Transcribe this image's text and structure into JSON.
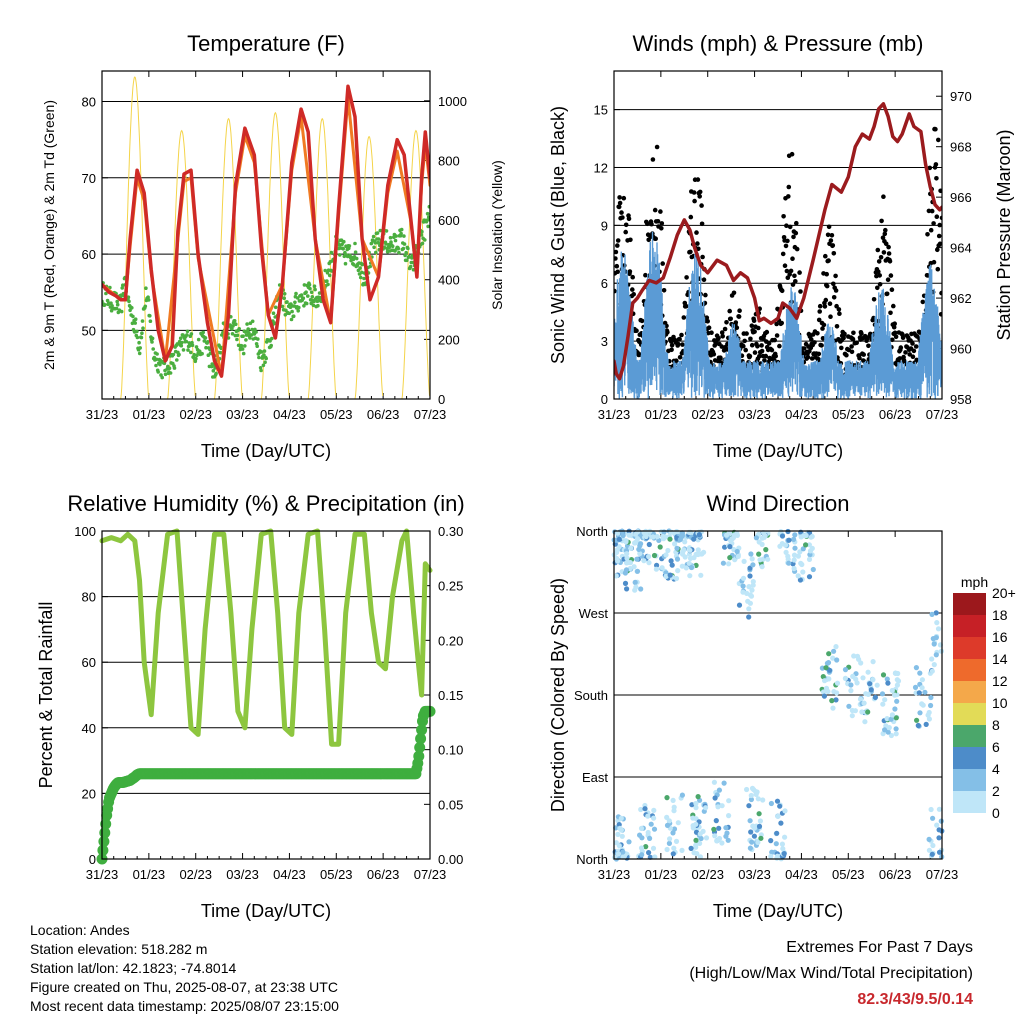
{
  "colors": {
    "temp_2m": "#cf2a27",
    "temp_9m": "#f07a22",
    "dewpoint": "#4aae3f",
    "solar": "#f4d44a",
    "wind": "#5b9bd5",
    "gust": "#000000",
    "pressure": "#9b1b1e",
    "rh": "#8dc63f",
    "rain": "#3fae3f"
  },
  "time_ticks": [
    "31/23",
    "01/23",
    "02/23",
    "03/23",
    "04/23",
    "05/23",
    "06/23",
    "07/23"
  ],
  "chart_data": [
    {
      "id": "temperature",
      "type": "line",
      "title": "Temperature (F)",
      "xlabel": "Time (Day/UTC)",
      "ylabel": "2m & 9m T (Red, Orange) & 2m Td (Green)",
      "ylabel_right": "Solar Insolation (Yellow)",
      "xlim_days": [
        0,
        7
      ],
      "ylim": [
        41,
        84
      ],
      "yticks": [
        50,
        60,
        70,
        80
      ],
      "ylim_right": [
        0,
        1100
      ],
      "yticks_right": [
        0,
        200,
        400,
        600,
        800,
        1000
      ],
      "grid": true,
      "series": [
        {
          "name": "2m T",
          "color": "#cf2a27",
          "x": [
            0,
            0.15,
            0.3,
            0.4,
            0.5,
            0.6,
            0.75,
            0.9,
            1.05,
            1.2,
            1.35,
            1.5,
            1.62,
            1.75,
            1.9,
            2.05,
            2.25,
            2.4,
            2.55,
            2.7,
            2.85,
            3.05,
            3.25,
            3.4,
            3.55,
            3.7,
            3.85,
            4.05,
            4.25,
            4.4,
            4.55,
            4.72,
            4.88,
            5.05,
            5.25,
            5.4,
            5.55,
            5.72,
            5.9,
            6.1,
            6.3,
            6.45,
            6.6,
            6.72,
            6.82,
            6.9,
            7.0
          ],
          "y": [
            56,
            55,
            54.5,
            54,
            54,
            62,
            71,
            68,
            58,
            50,
            46,
            48,
            63,
            70.5,
            71,
            60,
            51,
            46,
            44,
            52,
            69,
            76.5,
            73,
            61,
            52,
            49,
            56,
            72,
            79,
            76,
            62,
            54,
            51,
            66,
            82,
            78,
            62,
            54,
            57,
            69,
            75,
            73,
            64,
            57,
            70,
            76,
            70
          ]
        },
        {
          "name": "9m T",
          "color": "#f07a22",
          "x": [
            0,
            0.4,
            0.5,
            0.6,
            0.75,
            0.9,
            1.05,
            1.35,
            1.62,
            1.75,
            1.9,
            2.05,
            2.55,
            2.85,
            3.05,
            3.25,
            3.55,
            3.85,
            4.05,
            4.25,
            4.55,
            4.88,
            5.05,
            5.25,
            5.55,
            5.9,
            6.1,
            6.3,
            6.6,
            6.72,
            6.82,
            6.9,
            7.0
          ],
          "y": [
            56,
            54,
            54,
            61,
            70,
            67,
            57.5,
            46,
            62,
            69.5,
            70,
            59.5,
            44,
            68,
            75.5,
            72,
            52,
            56,
            71,
            78,
            62,
            51,
            65,
            80.5,
            62,
            57,
            68,
            73.5,
            64,
            57,
            69,
            74.5,
            69
          ]
        },
        {
          "name": "2m Td",
          "color": "#4aae3f",
          "x": [
            0,
            0.2,
            0.4,
            0.5,
            0.55,
            0.65,
            0.8,
            0.95,
            1.1,
            1.3,
            1.5,
            1.7,
            1.85,
            2.0,
            2.2,
            2.4,
            2.6,
            2.8,
            3.0,
            3.2,
            3.4,
            3.6,
            3.8,
            4.0,
            4.2,
            4.4,
            4.6,
            4.8,
            5.0,
            5.2,
            5.4,
            5.6,
            5.8,
            6.0,
            6.2,
            6.4,
            6.6,
            6.8,
            7.0
          ],
          "y": [
            55,
            54,
            53,
            57,
            54,
            52,
            48,
            55,
            47,
            45,
            46,
            48,
            49,
            47,
            49,
            44,
            50,
            51,
            48,
            51,
            46,
            49,
            55,
            52,
            54,
            55,
            54,
            57,
            61,
            60,
            60,
            57,
            61,
            62,
            61,
            62,
            58,
            62,
            65
          ]
        }
      ],
      "solar_peaks": [
        {
          "day": 0.7,
          "value": 1080
        },
        {
          "day": 1.7,
          "value": 900
        },
        {
          "day": 2.7,
          "value": 940
        },
        {
          "day": 3.7,
          "value": 960
        },
        {
          "day": 4.7,
          "value": 940
        },
        {
          "day": 5.7,
          "value": 880
        },
        {
          "day": 6.7,
          "value": 900
        }
      ]
    },
    {
      "id": "winds",
      "type": "scatter",
      "title": "Winds (mph) & Pressure (mb)",
      "xlabel": "Time (Day/UTC)",
      "ylabel": "Sonic Wind & Gust (Blue, Black)",
      "ylabel_right": "Station Pressure (Maroon)",
      "xlim_days": [
        0,
        7
      ],
      "ylim": [
        0,
        17
      ],
      "yticks": [
        0,
        3,
        6,
        9,
        12,
        15
      ],
      "ylim_right": [
        958,
        971
      ],
      "yticks_right": [
        958,
        960,
        962,
        964,
        966,
        968,
        970
      ],
      "grid": true,
      "wind_peaks": [
        {
          "day": 0.2,
          "value": 8
        },
        {
          "day": 0.85,
          "value": 9
        },
        {
          "day": 1.75,
          "value": 8
        },
        {
          "day": 2.55,
          "value": 4
        },
        {
          "day": 3.8,
          "value": 6
        },
        {
          "day": 4.6,
          "value": 4
        },
        {
          "day": 5.7,
          "value": 6
        },
        {
          "day": 6.75,
          "value": 7
        }
      ],
      "gust_peaks": [
        {
          "day": 0.2,
          "value": 12
        },
        {
          "day": 0.85,
          "value": 14.5
        },
        {
          "day": 1.75,
          "value": 13
        },
        {
          "day": 2.55,
          "value": 6
        },
        {
          "day": 3.05,
          "value": 5
        },
        {
          "day": 3.75,
          "value": 13.5
        },
        {
          "day": 4.6,
          "value": 9
        },
        {
          "day": 5.75,
          "value": 10.5
        },
        {
          "day": 6.85,
          "value": 15
        }
      ],
      "pressure": {
        "name": "Station Pressure",
        "color": "#9b1b1e",
        "x": [
          0,
          0.05,
          0.12,
          0.2,
          0.3,
          0.4,
          0.5,
          0.6,
          0.75,
          0.9,
          1.05,
          1.2,
          1.35,
          1.5,
          1.62,
          1.72,
          1.85,
          2.0,
          2.2,
          2.4,
          2.55,
          2.7,
          2.85,
          3.0,
          3.1,
          3.2,
          3.35,
          3.5,
          3.6,
          3.75,
          3.9,
          4.05,
          4.25,
          4.5,
          4.65,
          4.85,
          5.0,
          5.15,
          5.3,
          5.45,
          5.55,
          5.65,
          5.75,
          5.85,
          5.95,
          6.05,
          6.15,
          6.3,
          6.4,
          6.55,
          6.65,
          6.75,
          6.85,
          6.95,
          7.0
        ],
        "y": [
          959.5,
          959.0,
          958.8,
          959.3,
          960.5,
          961.8,
          962.0,
          962.3,
          962.7,
          962.6,
          962.8,
          963.6,
          964.5,
          965.1,
          964.7,
          964.0,
          963.3,
          963.0,
          963.5,
          963.3,
          962.7,
          963.0,
          962.8,
          962.0,
          961.1,
          961.2,
          961.0,
          961.2,
          961.8,
          961.6,
          961.2,
          962.0,
          963.5,
          965.5,
          966.5,
          966.2,
          966.8,
          968.0,
          968.5,
          968.3,
          968.8,
          969.5,
          969.7,
          969.2,
          968.4,
          968.2,
          968.5,
          969.3,
          968.8,
          968.6,
          967.3,
          966.4,
          965.7,
          965.5,
          965.6
        ]
      }
    },
    {
      "id": "humidity",
      "type": "line",
      "title": "Relative Humidity (%) & Precipitation (in)",
      "xlabel": "Time (Day/UTC)",
      "ylabel": "Percent & Total Rainfall",
      "xlim_days": [
        0,
        7
      ],
      "ylim": [
        0,
        100
      ],
      "yticks": [
        0,
        20,
        40,
        60,
        80,
        100
      ],
      "ylim_right": [
        0,
        0.3
      ],
      "yticks_right": [
        "0.00",
        "0.05",
        "0.10",
        "0.15",
        "0.20",
        "0.25",
        "0.30"
      ],
      "grid": true,
      "series": [
        {
          "name": "RH",
          "color": "#8dc63f",
          "x": [
            0,
            0.2,
            0.4,
            0.55,
            0.7,
            0.8,
            0.9,
            1.05,
            1.2,
            1.4,
            1.6,
            1.75,
            1.9,
            2.05,
            2.2,
            2.4,
            2.6,
            2.75,
            2.9,
            3.05,
            3.2,
            3.4,
            3.6,
            3.75,
            3.9,
            4.05,
            4.2,
            4.4,
            4.6,
            4.75,
            4.9,
            5.05,
            5.2,
            5.4,
            5.6,
            5.75,
            5.9,
            6.05,
            6.2,
            6.4,
            6.5,
            6.65,
            6.75,
            6.82,
            6.9,
            7.0
          ],
          "y": [
            97,
            98,
            97,
            99,
            97,
            85,
            60,
            44,
            75,
            99,
            100,
            70,
            40,
            38,
            70,
            99,
            99,
            75,
            45,
            40,
            70,
            99,
            100,
            75,
            40,
            38,
            75,
            99,
            100,
            70,
            35,
            35,
            75,
            99,
            99,
            75,
            60,
            58,
            80,
            97,
            100,
            75,
            60,
            50,
            90,
            88
          ]
        }
      ],
      "rain": {
        "name": "Total Rainfall",
        "color": "#3fae3f",
        "x": [
          0,
          0.05,
          0.1,
          0.15,
          0.2,
          0.25,
          0.3,
          0.35,
          0.45,
          0.6,
          0.7,
          0.75,
          0.8,
          6.7,
          6.75,
          6.8,
          6.85,
          6.9,
          7.0
        ],
        "y": [
          0.0,
          0.02,
          0.04,
          0.055,
          0.06,
          0.065,
          0.068,
          0.07,
          0.07,
          0.072,
          0.075,
          0.077,
          0.078,
          0.078,
          0.09,
          0.11,
          0.13,
          0.135,
          0.135
        ]
      }
    },
    {
      "id": "direction",
      "type": "scatter",
      "title": "Wind Direction",
      "xlabel": "Time (Day/UTC)",
      "ylabel": "Direction (Colored By Speed)",
      "xlim_days": [
        0,
        7
      ],
      "ylim": [
        0,
        360
      ],
      "y_categories": [
        "North",
        "East",
        "South",
        "West",
        "North"
      ],
      "y_values": [
        0,
        90,
        180,
        270,
        360
      ],
      "grid": true,
      "colorbar": {
        "title": "mph",
        "labels": [
          "0",
          "2",
          "4",
          "6",
          "8",
          "10",
          "12",
          "14",
          "16",
          "18",
          "20+"
        ],
        "colors": [
          "#bfe6f8",
          "#84bfe7",
          "#4d8cc9",
          "#4ba76b",
          "#e2db57",
          "#f4a84a",
          "#ee6a2c",
          "#dd3a2a",
          "#c62026",
          "#9c181c"
        ]
      },
      "clusters": [
        {
          "day": 0.05,
          "dir": 350
        },
        {
          "day": 0.2,
          "dir": 345
        },
        {
          "day": 0.4,
          "dir": 330
        },
        {
          "day": 0.6,
          "dir": 355
        },
        {
          "day": 0.85,
          "dir": 350
        },
        {
          "day": 1.2,
          "dir": 340
        },
        {
          "day": 1.5,
          "dir": 350
        },
        {
          "day": 1.75,
          "dir": 345
        },
        {
          "day": 2.5,
          "dir": 355
        },
        {
          "day": 2.8,
          "dir": 300
        },
        {
          "day": 3.2,
          "dir": 345
        },
        {
          "day": 3.7,
          "dir": 350
        },
        {
          "day": 4.1,
          "dir": 340
        },
        {
          "day": 4.6,
          "dir": 200
        },
        {
          "day": 5.1,
          "dir": 190
        },
        {
          "day": 5.45,
          "dir": 185
        },
        {
          "day": 5.9,
          "dir": 170
        },
        {
          "day": 6.6,
          "dir": 180
        },
        {
          "day": 0.15,
          "dir": 15
        },
        {
          "day": 0.7,
          "dir": 25
        },
        {
          "day": 1.3,
          "dir": 40
        },
        {
          "day": 1.8,
          "dir": 35
        },
        {
          "day": 2.3,
          "dir": 50
        },
        {
          "day": 3.0,
          "dir": 45
        },
        {
          "day": 3.5,
          "dir": 30
        },
        {
          "day": 6.9,
          "dir": 20
        },
        {
          "day": 6.95,
          "dir": 240
        }
      ]
    }
  ],
  "footer": {
    "lines": [
      "Location: Andes",
      "Station elevation: 518.282 m",
      "Station lat/lon: 42.1823; -74.8014",
      "Figure created on Thu, 2025-08-07, at 23:38 UTC",
      "Most recent data timestamp: 2025/08/07 23:15:00"
    ],
    "extremes_title": "Extremes For Past 7 Days",
    "extremes_legend": "(High/Low/Max Wind/Total Precipitation)",
    "extremes_values": "82.3/43/9.5/0.14"
  }
}
